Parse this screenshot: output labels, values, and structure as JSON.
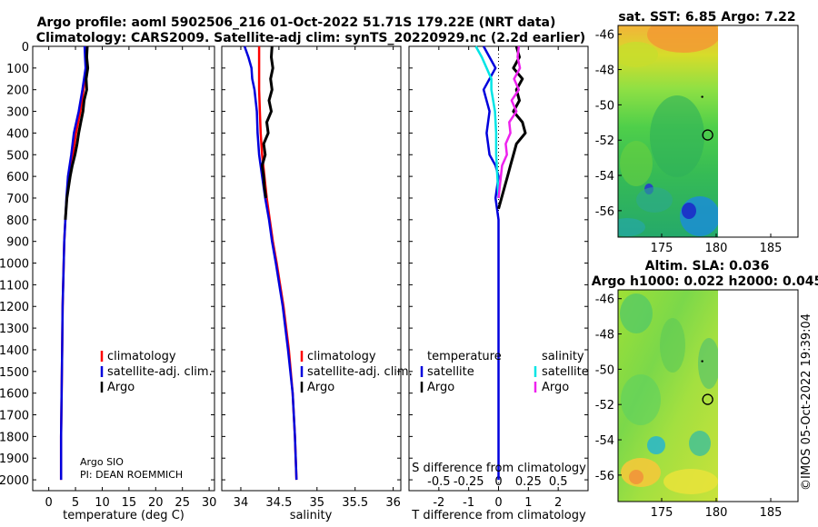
{
  "header": {
    "line1": "Argo profile: aoml 5902506_216 01-Oct-2022 51.71S 179.22E (NRT data)",
    "line2": "Climatology: CARS2009. Satellite-adj clim: synTS_20220929.nc (2.2d earlier)"
  },
  "chart_data": [
    {
      "type": "line",
      "name": "temperature-profile",
      "xlabel": "temperature (deg C)",
      "ylabel": "",
      "xlim": [
        -3,
        31
      ],
      "ylim": [
        2050,
        0
      ],
      "xticks": [
        0,
        5,
        10,
        15,
        20,
        25,
        30
      ],
      "yticks": [
        0,
        100,
        200,
        300,
        400,
        500,
        600,
        700,
        800,
        900,
        1000,
        1100,
        1200,
        1300,
        1400,
        1500,
        1600,
        1700,
        1800,
        1900,
        2000
      ],
      "legend": [
        "climatology",
        "satellite-adj. clim.",
        "Argo"
      ],
      "annotations": [
        "Argo SIO",
        "PI: DEAN ROEMMICH"
      ],
      "series": [
        {
          "name": "climatology",
          "color": "#ff0000",
          "depth": [
            0,
            50,
            100,
            200,
            300,
            400,
            500,
            600,
            700,
            800,
            900,
            1000,
            1200,
            1400,
            1600,
            1800,
            2000
          ],
          "values": [
            7.2,
            7.1,
            7.0,
            6.5,
            5.9,
            5.1,
            4.5,
            3.8,
            3.4,
            3.1,
            2.9,
            2.8,
            2.6,
            2.5,
            2.4,
            2.3,
            2.3
          ]
        },
        {
          "name": "satellite-adj. clim.",
          "color": "#0000dd",
          "depth": [
            0,
            50,
            100,
            200,
            300,
            400,
            500,
            600,
            700,
            800,
            900,
            1000,
            1200,
            1400,
            1600,
            1800,
            2000
          ],
          "values": [
            6.7,
            6.8,
            6.9,
            6.3,
            5.6,
            4.7,
            4.2,
            3.6,
            3.3,
            3.1,
            2.9,
            2.8,
            2.6,
            2.5,
            2.4,
            2.3,
            2.3
          ]
        },
        {
          "name": "Argo",
          "color": "#000000",
          "depth": [
            0,
            50,
            100,
            150,
            200,
            250,
            300,
            350,
            400,
            450,
            500,
            550,
            600,
            650,
            700,
            800
          ],
          "values": [
            7.2,
            7.1,
            7.3,
            7.0,
            7.1,
            6.6,
            6.4,
            6.0,
            5.6,
            5.3,
            4.9,
            4.4,
            4.0,
            3.7,
            3.4,
            3.1
          ]
        }
      ]
    },
    {
      "type": "line",
      "name": "salinity-profile",
      "xlabel": "salinity",
      "xlim": [
        33.75,
        36.1
      ],
      "ylim": [
        2050,
        0
      ],
      "xticks": [
        34,
        34.5,
        35,
        35.5,
        36
      ],
      "legend": [
        "climatology",
        "satellite-adj. clim.",
        "Argo"
      ],
      "series": [
        {
          "name": "climatology",
          "color": "#ff0000",
          "depth": [
            0,
            100,
            200,
            300,
            400,
            500,
            600,
            700,
            800,
            900,
            1000,
            1200,
            1400,
            1600,
            1800,
            2000
          ],
          "values": [
            34.24,
            34.24,
            34.24,
            34.25,
            34.26,
            34.28,
            34.31,
            34.34,
            34.38,
            34.42,
            34.47,
            34.56,
            34.63,
            34.68,
            34.71,
            34.73
          ]
        },
        {
          "name": "satellite-adj. clim.",
          "color": "#0000dd",
          "depth": [
            0,
            50,
            100,
            150,
            200,
            300,
            400,
            500,
            600,
            700,
            800,
            900,
            1000,
            1200,
            1400,
            1600,
            1800,
            2000
          ],
          "values": [
            34.05,
            34.1,
            34.14,
            34.15,
            34.18,
            34.21,
            34.22,
            34.24,
            34.28,
            34.32,
            34.37,
            34.41,
            34.46,
            34.55,
            34.62,
            34.68,
            34.71,
            34.73
          ]
        },
        {
          "name": "Argo",
          "color": "#000000",
          "depth": [
            0,
            50,
            100,
            150,
            200,
            250,
            300,
            350,
            400,
            450,
            500,
            550,
            600,
            650,
            700
          ],
          "values": [
            34.41,
            34.4,
            34.42,
            34.39,
            34.41,
            34.37,
            34.4,
            34.34,
            34.36,
            34.3,
            34.32,
            34.28,
            34.3,
            34.31,
            34.33
          ]
        }
      ]
    },
    {
      "type": "line",
      "name": "difference-profile",
      "xlabel": "T difference from climatology",
      "top_xlabel": "S difference from climatology",
      "xlim": [
        -3,
        3
      ],
      "ylim": [
        2050,
        0
      ],
      "xticks": [
        -2,
        -1,
        0,
        1,
        2
      ],
      "top_xticks": [
        "-0.5",
        "-0.25",
        "0",
        "0.25",
        "0.5"
      ],
      "legend_left_title": "temperature",
      "legend_right_title": "salinity",
      "legend_left": [
        "satellite",
        "Argo"
      ],
      "legend_right": [
        "satellite",
        "Argo"
      ],
      "series": [
        {
          "name": "T satellite",
          "color": "#0000dd",
          "depth": [
            0,
            50,
            100,
            150,
            200,
            300,
            400,
            500,
            550,
            600,
            700,
            800,
            900,
            1000,
            1200,
            1400,
            1600,
            1800,
            2000
          ],
          "values": [
            -0.5,
            -0.3,
            -0.1,
            -0.3,
            -0.5,
            -0.3,
            -0.4,
            -0.3,
            -0.1,
            0.0,
            -0.1,
            0.0,
            0.0,
            0.0,
            0.0,
            0.0,
            0.0,
            0.0,
            0.0
          ]
        },
        {
          "name": "T Argo",
          "color": "#000000",
          "depth": [
            0,
            50,
            100,
            150,
            200,
            250,
            300,
            350,
            400,
            450,
            500,
            550,
            600,
            650,
            700,
            750
          ],
          "values": [
            0.6,
            0.7,
            0.5,
            0.8,
            0.6,
            0.7,
            0.5,
            0.8,
            0.9,
            0.6,
            0.5,
            0.4,
            0.3,
            0.2,
            0.1,
            0.0
          ]
        },
        {
          "name": "S satellite",
          "color": "#00e5e5",
          "depth": [
            0,
            50,
            100,
            150,
            200,
            300,
            400,
            500,
            600,
            700
          ],
          "values": [
            -0.19,
            -0.14,
            -0.1,
            -0.06,
            -0.06,
            -0.03,
            -0.02,
            -0.02,
            -0.01,
            0.0
          ]
        },
        {
          "name": "S Argo",
          "color": "#ee22ee",
          "depth": [
            0,
            50,
            100,
            150,
            200,
            250,
            300,
            350,
            400,
            450,
            500,
            550,
            600,
            650,
            700
          ],
          "values": [
            0.17,
            0.16,
            0.18,
            0.13,
            0.17,
            0.11,
            0.15,
            0.09,
            0.1,
            0.06,
            0.07,
            0.03,
            0.02,
            0.01,
            0.0
          ]
        }
      ]
    },
    {
      "type": "heatmap",
      "name": "sst-map",
      "title": "sat. SST: 6.85 Argo: 7.22",
      "xticks": [
        175,
        180,
        185
      ],
      "yticks": [
        -46,
        -48,
        -50,
        -52,
        -54,
        -56
      ],
      "xlim": [
        171,
        187.5
      ],
      "ylim": [
        -57.5,
        -45.5
      ],
      "marker": {
        "lon": 179.22,
        "lat": -51.71
      }
    },
    {
      "type": "heatmap",
      "name": "sla-map",
      "title_line1": "Altim. SLA: 0.036",
      "title_line2": "Argo h1000: 0.022 h2000: 0.045",
      "xticks": [
        175,
        180,
        185
      ],
      "yticks": [
        -46,
        -48,
        -50,
        -52,
        -54,
        -56
      ],
      "xlim": [
        171,
        187.5
      ],
      "ylim": [
        -57.5,
        -45.5
      ],
      "marker": {
        "lon": 179.22,
        "lat": -51.71
      }
    }
  ],
  "footer": {
    "watermark": "©IMOS 05-Oct-2022 19:39:04"
  }
}
